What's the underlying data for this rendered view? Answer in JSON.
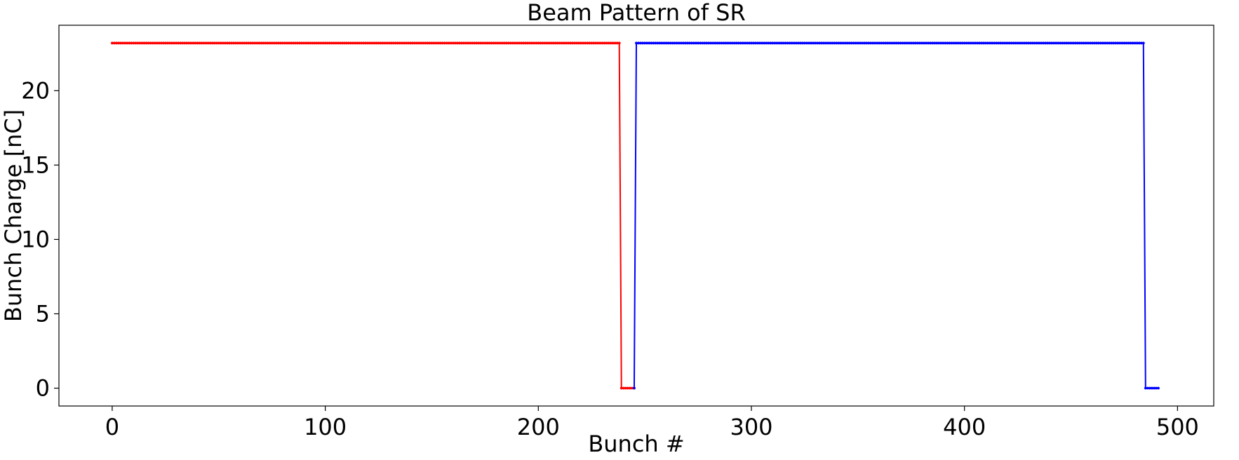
{
  "chart_data": {
    "type": "line",
    "title": "Beam Pattern of SR",
    "xlabel": "Bunch #",
    "ylabel": "Bunch Charge [nC]",
    "xlim": [
      -25,
      517
    ],
    "ylim": [
      -1.2,
      24.4
    ],
    "xticks": [
      0,
      100,
      200,
      300,
      400,
      500
    ],
    "yticks": [
      0,
      5,
      10,
      15,
      20
    ],
    "grid": false,
    "series": [
      {
        "color": "#ff0000",
        "segments": [
          {
            "x_start": 0,
            "x_end": 238,
            "y": 23.2
          },
          {
            "x_start": 239,
            "x_end": 245,
            "y": 0
          }
        ]
      },
      {
        "color": "#0000ff",
        "segments": [
          {
            "x_start": 245,
            "x_end": 245,
            "y": 0
          },
          {
            "x_start": 246,
            "x_end": 484,
            "y": 23.2
          },
          {
            "x_start": 485,
            "x_end": 491,
            "y": 0
          }
        ]
      }
    ]
  }
}
